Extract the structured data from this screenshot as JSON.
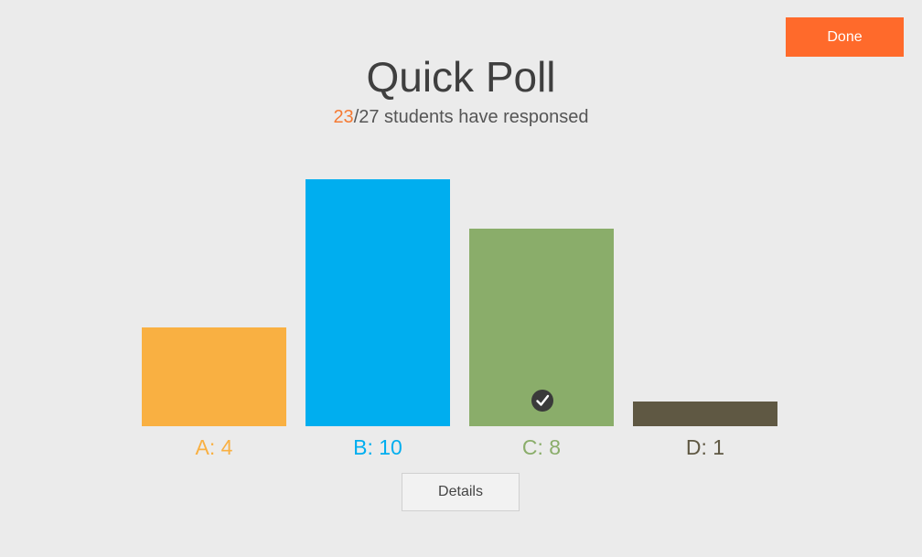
{
  "header": {
    "done_label": "Done"
  },
  "poll": {
    "title": "Quick Poll",
    "responded": "23",
    "total_text": "/27 students have responsed"
  },
  "chart_data": {
    "type": "bar",
    "categories": [
      "A",
      "B",
      "C",
      "D"
    ],
    "values": [
      4,
      10,
      8,
      1
    ],
    "labels": [
      "A: 4",
      "B: 10",
      "C: 8",
      "D: 1"
    ],
    "colors": [
      "#f9b042",
      "#00aeef",
      "#8aad6a",
      "#5f5843"
    ],
    "correct_index": 2,
    "correct_icon": "check-circle-icon",
    "ylim": [
      0,
      10
    ],
    "grid": false
  },
  "footer": {
    "details_label": "Details"
  },
  "colors": {
    "accent": "#ff6a2b",
    "background": "#ebebeb"
  }
}
